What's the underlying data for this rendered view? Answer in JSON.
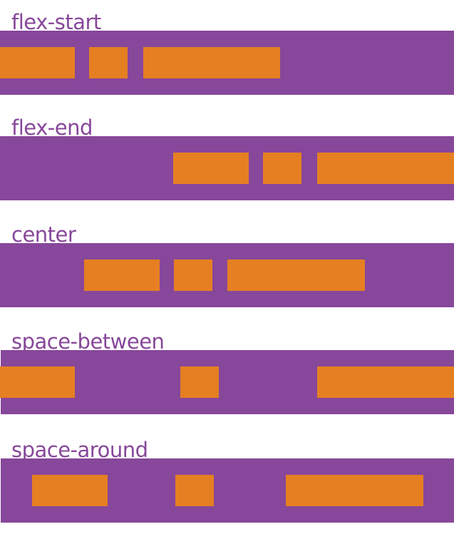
{
  "colors": {
    "container": "#87479a",
    "item": "#e67f22"
  },
  "rows": [
    {
      "label": "flex-start"
    },
    {
      "label": "flex-end"
    },
    {
      "label": "center"
    },
    {
      "label": "space-between"
    },
    {
      "label": "space-around"
    }
  ]
}
